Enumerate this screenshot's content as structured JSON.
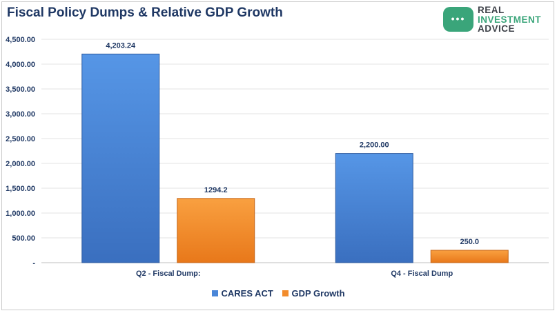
{
  "chart_data": {
    "type": "bar",
    "title": "Fiscal Policy Dumps & Relative GDP Growth",
    "categories": [
      "Q2 - Fiscal Dump:",
      "Q4 - Fiscal Dump"
    ],
    "series": [
      {
        "name": "CARES ACT",
        "values": [
          4203.24,
          2200.0
        ],
        "labels": [
          "4,203.24",
          "2,200.00"
        ],
        "color": "#4a86d8"
      },
      {
        "name": "GDP Growth",
        "values": [
          1294.2,
          250.0
        ],
        "labels": [
          "1294.2",
          "250.0"
        ],
        "color": "#f28c2c"
      }
    ],
    "ylim": [
      0,
      4500
    ],
    "yticks": [
      0,
      500,
      1000,
      1500,
      2000,
      2500,
      3000,
      3500,
      4000,
      4500
    ],
    "ytick_labels": [
      "-",
      "500.00",
      "1,000.00",
      "1,500.00",
      "2,000.00",
      "2,500.00",
      "3,000.00",
      "3,500.00",
      "4,000.00",
      "4,500.00"
    ],
    "grid": true,
    "legend_position": "bottom"
  },
  "logo": {
    "lines": [
      "REAL",
      "INVESTMENT",
      "ADVICE"
    ],
    "badge_glyph": "•••",
    "color": "#3aa57a"
  }
}
